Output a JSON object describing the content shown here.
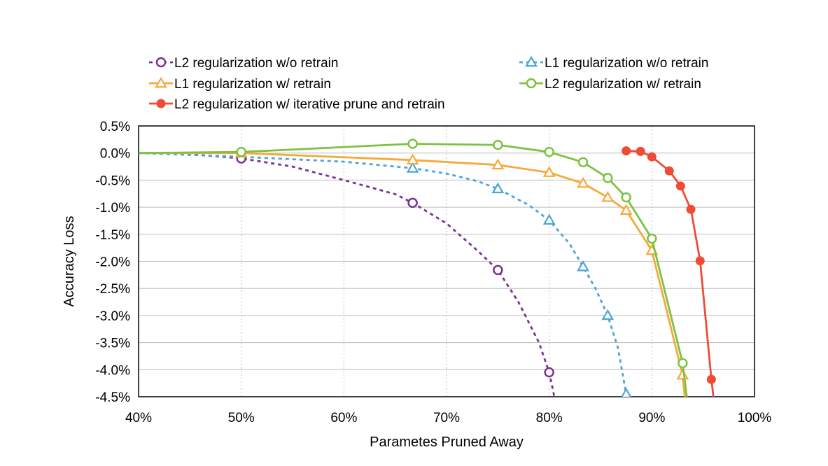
{
  "chart_data": {
    "type": "line",
    "title": "",
    "xlabel": "Parametes Pruned Away",
    "ylabel": "Accuracy Loss",
    "xlim": [
      0.4,
      1.0
    ],
    "ylim": [
      -4.5,
      0.5
    ],
    "x_ticks": [
      0.4,
      0.5,
      0.6,
      0.7,
      0.8,
      0.9,
      1.0
    ],
    "x_tick_labels": [
      "40%",
      "50%",
      "60%",
      "70%",
      "80%",
      "90%",
      "100%"
    ],
    "y_ticks": [
      0.5,
      0.0,
      -0.5,
      -1.0,
      -1.5,
      -2.0,
      -2.5,
      -3.0,
      -3.5,
      -4.0,
      -4.5
    ],
    "y_tick_labels": [
      "0.5%",
      "0.0%",
      "-0.5%",
      "-1.0%",
      "-1.5%",
      "-2.0%",
      "-2.5%",
      "-3.0%",
      "-3.5%",
      "-4.0%",
      "-4.5%"
    ],
    "grid": true,
    "legend_position": "top",
    "series": [
      {
        "name": "L2 regularization w/o retrain",
        "color": "#7b3294",
        "dash": true,
        "marker": "circle-open",
        "marked": [
          [
            0.5,
            -0.1
          ],
          [
            0.667,
            -0.92
          ],
          [
            0.75,
            -2.16
          ],
          [
            0.8,
            -4.05
          ]
        ],
        "line": [
          [
            0.4,
            0.0
          ],
          [
            0.45,
            -0.02
          ],
          [
            0.5,
            -0.1
          ],
          [
            0.55,
            -0.25
          ],
          [
            0.6,
            -0.5
          ],
          [
            0.65,
            -0.76
          ],
          [
            0.667,
            -0.92
          ],
          [
            0.7,
            -1.3
          ],
          [
            0.73,
            -1.8
          ],
          [
            0.75,
            -2.16
          ],
          [
            0.77,
            -2.75
          ],
          [
            0.79,
            -3.5
          ],
          [
            0.8,
            -4.05
          ],
          [
            0.805,
            -4.5
          ]
        ]
      },
      {
        "name": "L1 regularization w/o retrain",
        "color": "#4ba6d6",
        "dash": true,
        "marker": "triangle-open",
        "marked": [
          [
            0.667,
            -0.28
          ],
          [
            0.75,
            -0.66
          ],
          [
            0.8,
            -1.24
          ],
          [
            0.833,
            -2.1
          ],
          [
            0.857,
            -3.0
          ],
          [
            0.875,
            -4.45
          ]
        ],
        "line": [
          [
            0.4,
            0.0
          ],
          [
            0.5,
            -0.07
          ],
          [
            0.6,
            -0.16
          ],
          [
            0.667,
            -0.28
          ],
          [
            0.7,
            -0.38
          ],
          [
            0.73,
            -0.52
          ],
          [
            0.75,
            -0.66
          ],
          [
            0.78,
            -0.96
          ],
          [
            0.8,
            -1.24
          ],
          [
            0.82,
            -1.68
          ],
          [
            0.833,
            -2.1
          ],
          [
            0.845,
            -2.5
          ],
          [
            0.857,
            -3.0
          ],
          [
            0.867,
            -3.6
          ],
          [
            0.875,
            -4.45
          ],
          [
            0.876,
            -4.5
          ]
        ]
      },
      {
        "name": "L1 regularization w/ retrain",
        "color": "#f5a93b",
        "dash": false,
        "marker": "triangle-open",
        "marked": [
          [
            0.5,
            0.0
          ],
          [
            0.667,
            -0.13
          ],
          [
            0.75,
            -0.22
          ],
          [
            0.8,
            -0.36
          ],
          [
            0.833,
            -0.56
          ],
          [
            0.857,
            -0.82
          ],
          [
            0.875,
            -1.06
          ],
          [
            0.9,
            -1.8
          ],
          [
            0.93,
            -4.1
          ]
        ],
        "line": [
          [
            0.4,
            0.0
          ],
          [
            0.5,
            0.0
          ],
          [
            0.667,
            -0.13
          ],
          [
            0.75,
            -0.22
          ],
          [
            0.8,
            -0.36
          ],
          [
            0.833,
            -0.56
          ],
          [
            0.857,
            -0.82
          ],
          [
            0.875,
            -1.06
          ],
          [
            0.9,
            -1.8
          ],
          [
            0.93,
            -4.1
          ],
          [
            0.932,
            -4.5
          ]
        ]
      },
      {
        "name": "L2 regularization w/ retrain",
        "color": "#7dc242",
        "dash": false,
        "marker": "circle-open",
        "marked": [
          [
            0.5,
            0.02
          ],
          [
            0.667,
            0.17
          ],
          [
            0.75,
            0.15
          ],
          [
            0.8,
            0.02
          ],
          [
            0.833,
            -0.17
          ],
          [
            0.857,
            -0.46
          ],
          [
            0.875,
            -0.82
          ],
          [
            0.9,
            -1.58
          ],
          [
            0.93,
            -3.88
          ]
        ],
        "line": [
          [
            0.4,
            0.0
          ],
          [
            0.5,
            0.02
          ],
          [
            0.667,
            0.17
          ],
          [
            0.75,
            0.15
          ],
          [
            0.8,
            0.02
          ],
          [
            0.833,
            -0.17
          ],
          [
            0.857,
            -0.46
          ],
          [
            0.875,
            -0.82
          ],
          [
            0.9,
            -1.58
          ],
          [
            0.93,
            -3.88
          ],
          [
            0.934,
            -4.5
          ]
        ]
      },
      {
        "name": "L2 regularization w/ iterative prune and retrain",
        "color": "#ef4b35",
        "dash": false,
        "marker": "circle-filled",
        "marked": [
          [
            0.875,
            0.04
          ],
          [
            0.889,
            0.03
          ],
          [
            0.9,
            -0.07
          ],
          [
            0.917,
            -0.33
          ],
          [
            0.928,
            -0.61
          ],
          [
            0.938,
            -1.04
          ],
          [
            0.947,
            -1.99
          ],
          [
            0.958,
            -4.18
          ]
        ],
        "line": [
          [
            0.875,
            0.04
          ],
          [
            0.889,
            0.03
          ],
          [
            0.9,
            -0.07
          ],
          [
            0.917,
            -0.33
          ],
          [
            0.928,
            -0.61
          ],
          [
            0.938,
            -1.04
          ],
          [
            0.947,
            -1.99
          ],
          [
            0.958,
            -4.18
          ],
          [
            0.96,
            -4.5
          ]
        ]
      }
    ]
  }
}
